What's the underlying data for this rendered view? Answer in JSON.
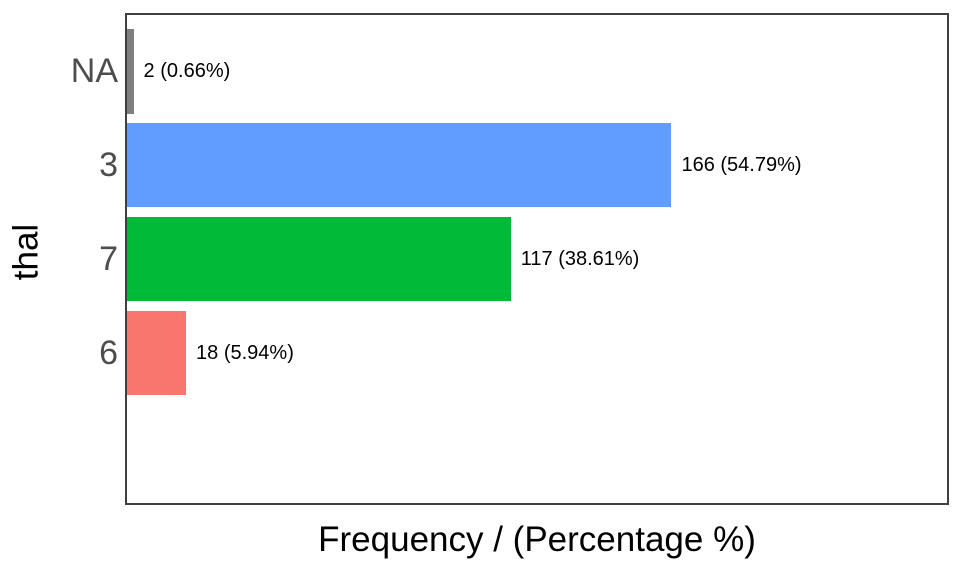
{
  "figure": {
    "background": "#FFFFFF"
  },
  "chart_data": {
    "type": "bar",
    "orientation": "horizontal",
    "title": "",
    "xlabel": "Frequency / (Percentage %)",
    "ylabel": "thal",
    "categories": [
      "NA",
      "3",
      "7",
      "6"
    ],
    "values": [
      2,
      166,
      117,
      18
    ],
    "percentages": [
      0.66,
      54.79,
      38.61,
      5.94
    ],
    "bar_labels": [
      "2 (0.66%)",
      "166 (54.79%)",
      "117 (38.61%)",
      "18 (5.94%)"
    ],
    "bar_colors": [
      "#7F7F7F",
      "#619CFF",
      "#00BA38",
      "#F8766D"
    ],
    "xlim": [
      0,
      250
    ],
    "bar_width_fraction": 0.9,
    "grid": false,
    "legend": false,
    "styles": {
      "tick_label_color": "#4D4D4D",
      "axis_title_color": "#000000",
      "panel_border_color": "#404040",
      "value_label_color": "#000000"
    }
  }
}
